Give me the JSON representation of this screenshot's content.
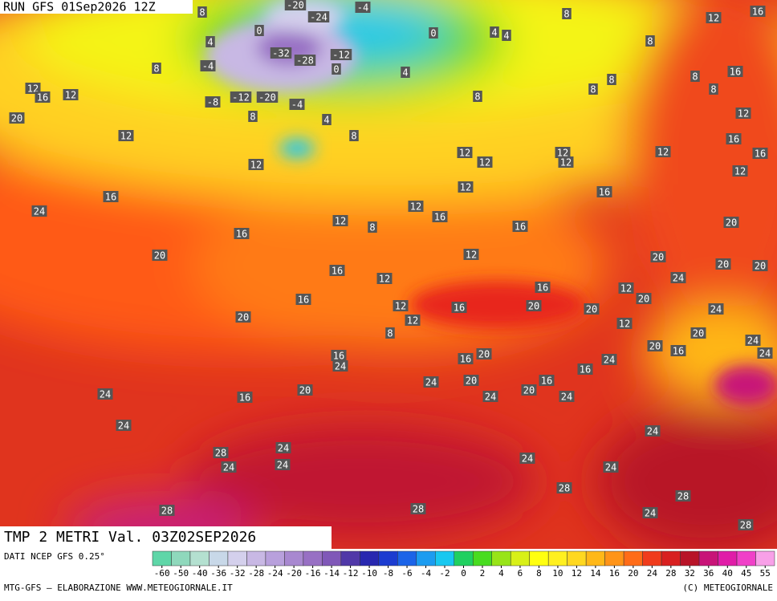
{
  "header": {
    "run": "RUN GFS 01Sep2026 12Z"
  },
  "map": {
    "title": "TMP 2 METRI Val. 03Z02SEP2026",
    "contour_labels": [
      "-20",
      "-24",
      "-4",
      "8",
      "0",
      "4",
      "0",
      "4",
      "4",
      "8",
      "12",
      "16",
      "8",
      "-32",
      "-28",
      "-12",
      "-4",
      "0",
      "8",
      "4",
      "8",
      "8",
      "8",
      "8",
      "16",
      "12",
      "16",
      "12",
      "-8",
      "-12",
      "-20",
      "-4",
      "8",
      "8",
      "4",
      "20",
      "12",
      "8",
      "12",
      "12",
      "12",
      "12",
      "12",
      "12",
      "16",
      "12",
      "16",
      "12",
      "12",
      "16",
      "16",
      "24",
      "12",
      "16",
      "12",
      "8",
      "16",
      "20",
      "16",
      "20",
      "12",
      "20",
      "20",
      "20",
      "16",
      "12",
      "24",
      "16",
      "12",
      "16",
      "20",
      "16",
      "20",
      "12",
      "20",
      "24",
      "20",
      "12",
      "8",
      "12",
      "20",
      "24",
      "16",
      "24",
      "16",
      "20",
      "24",
      "20",
      "16",
      "24",
      "16",
      "20",
      "20",
      "24",
      "16",
      "20",
      "24",
      "16",
      "24",
      "24",
      "24",
      "24",
      "24",
      "28",
      "24",
      "24",
      "24",
      "24",
      "28",
      "28",
      "28",
      "28",
      "24",
      "28"
    ]
  },
  "footer": {
    "source": "DATI NCEP GFS 0.25°",
    "credit": "MTG-GFS — ELABORAZIONE WWW.METEOGIORNALE.IT",
    "copyright": "(C) METEOGIORNALE"
  },
  "colorbar": {
    "labels": [
      -60,
      -50,
      -40,
      -36,
      -32,
      -28,
      -24,
      -20,
      -16,
      -14,
      -12,
      -10,
      -8,
      -6,
      -4,
      -2,
      0,
      2,
      4,
      6,
      8,
      10,
      12,
      14,
      16,
      20,
      24,
      28,
      32,
      36,
      40,
      45,
      55
    ],
    "colors": [
      "#5fd6a8",
      "#8fd8bc",
      "#b4e0d0",
      "#c8d8e8",
      "#d4d0ec",
      "#c8b8e4",
      "#b8a0dc",
      "#a888d0",
      "#9870c4",
      "#8058b8",
      "#5038a8",
      "#2828b0",
      "#1c3cd0",
      "#1c64e8",
      "#1c9cf0",
      "#18c8f0",
      "#20d060",
      "#48dc20",
      "#98e418",
      "#d8f018",
      "#ffff10",
      "#fff020",
      "#ffd820",
      "#ffb818",
      "#ff9418",
      "#ff6c18",
      "#f03c1c",
      "#d82020",
      "#b81428",
      "#c81478",
      "#e01ca8",
      "#f040c8",
      "#f8a0e8"
    ]
  }
}
